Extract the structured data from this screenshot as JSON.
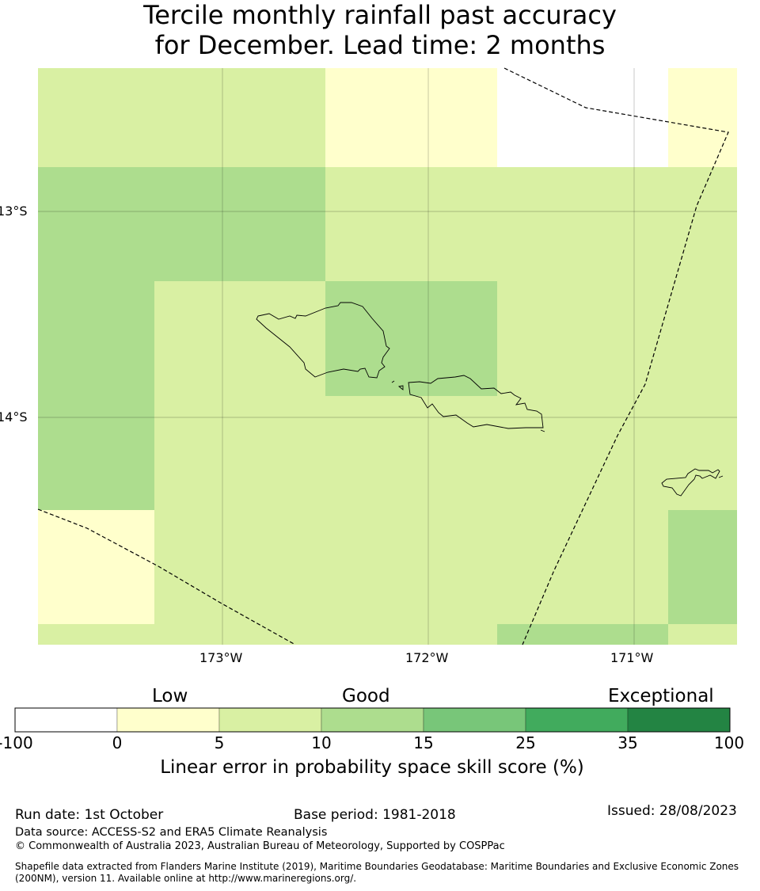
{
  "title": {
    "line1": "Tercile monthly rainfall past accuracy",
    "line2": "for December. Lead time: 2 months"
  },
  "map": {
    "lat_labels": [
      "13°S",
      "14°S"
    ],
    "lon_labels": [
      "173°W",
      "172°W",
      "171°W"
    ],
    "colors": {
      "white": "#ffffff",
      "yellow": "#ffffcc",
      "lightgreen": "#d9f0a3",
      "green": "#addd8e"
    }
  },
  "colorbar": {
    "categories": [
      "Low",
      "Good",
      "Exceptional"
    ],
    "ticks": [
      "-100",
      "0",
      "5",
      "10",
      "15",
      "25",
      "35",
      "100"
    ],
    "colors": [
      "#ffffff",
      "#ffffcc",
      "#d9f0a3",
      "#addd8e",
      "#78c679",
      "#41ab5d",
      "#238443"
    ],
    "label": "Linear error in probability space skill score (%)"
  },
  "footer": {
    "run_date": "Run date: 1st October",
    "base_period": "Base period: 1981-2018",
    "issued": "Issued: 28/08/2023",
    "data_source": "Data source: ACCESS-S2 and ERA5 Climate Reanalysis",
    "copyright": "© Commonwealth of Australia 2023, Australian Bureau of Meteorology, Supported by COSPPac",
    "shapefile_line1": "Shapefile data extracted from Flanders Marine Institute (2019), Maritime Boundaries Geodatabase: Maritime Boundaries and Exclusive Economic Zones",
    "shapefile_line2": "(200NM), version 11. Available online at http://www.marineregions.org/."
  }
}
